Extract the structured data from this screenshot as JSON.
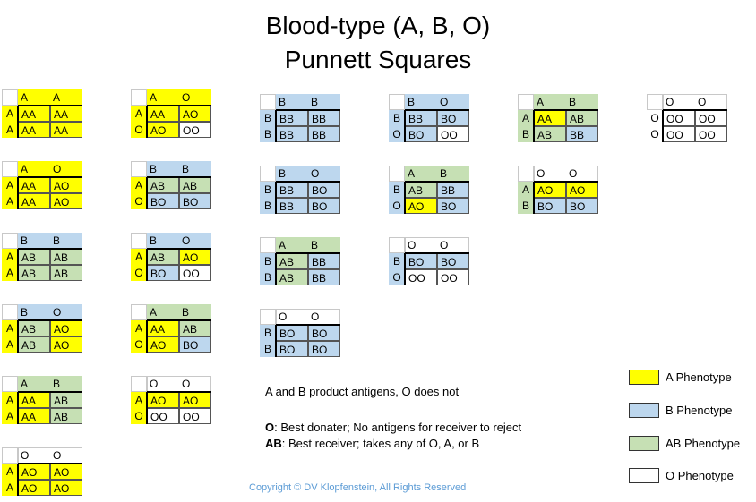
{
  "title_line1": "Blood-type (A, B, O)",
  "title_line2": "Punnett Squares",
  "colors": {
    "A": "#ffff00",
    "B": "#bdd7ee",
    "AB": "#c6e0b4",
    "O": "#ffffff"
  },
  "squares": [
    {
      "top": [
        "A",
        "A"
      ],
      "left": [
        "A",
        "A"
      ],
      "cells": [
        "AA",
        "AA",
        "AA",
        "AA"
      ],
      "ph": [
        "A",
        "A",
        "A",
        "A"
      ]
    },
    {
      "top": [
        "A",
        "O"
      ],
      "left": [
        "A",
        "A"
      ],
      "cells": [
        "AA",
        "AO",
        "AA",
        "AO"
      ],
      "ph": [
        "A",
        "A",
        "A",
        "A"
      ]
    },
    {
      "top": [
        "B",
        "B"
      ],
      "left": [
        "A",
        "A"
      ],
      "cells": [
        "AB",
        "AB",
        "AB",
        "AB"
      ],
      "ph": [
        "AB",
        "AB",
        "AB",
        "AB"
      ]
    },
    {
      "top": [
        "B",
        "O"
      ],
      "left": [
        "A",
        "A"
      ],
      "cells": [
        "AB",
        "AO",
        "AB",
        "AO"
      ],
      "ph": [
        "AB",
        "A",
        "AB",
        "A"
      ]
    },
    {
      "top": [
        "A",
        "B"
      ],
      "left": [
        "A",
        "A"
      ],
      "cells": [
        "AA",
        "AB",
        "AA",
        "AB"
      ],
      "ph": [
        "A",
        "AB",
        "A",
        "AB"
      ]
    },
    {
      "top": [
        "O",
        "O"
      ],
      "left": [
        "A",
        "A"
      ],
      "cells": [
        "AO",
        "AO",
        "AO",
        "AO"
      ],
      "ph": [
        "A",
        "A",
        "A",
        "A"
      ]
    },
    {
      "top": [
        "A",
        "O"
      ],
      "left": [
        "A",
        "O"
      ],
      "cells": [
        "AA",
        "AO",
        "AO",
        "OO"
      ],
      "ph": [
        "A",
        "A",
        "A",
        "O"
      ]
    },
    {
      "top": [
        "B",
        "B"
      ],
      "left": [
        "A",
        "O"
      ],
      "cells": [
        "AB",
        "AB",
        "BO",
        "BO"
      ],
      "ph": [
        "AB",
        "AB",
        "B",
        "B"
      ]
    },
    {
      "top": [
        "B",
        "O"
      ],
      "left": [
        "A",
        "O"
      ],
      "cells": [
        "AB",
        "AO",
        "BO",
        "OO"
      ],
      "ph": [
        "AB",
        "A",
        "B",
        "O"
      ]
    },
    {
      "top": [
        "A",
        "B"
      ],
      "left": [
        "A",
        "O"
      ],
      "cells": [
        "AA",
        "AB",
        "AO",
        "BO"
      ],
      "ph": [
        "A",
        "AB",
        "A",
        "B"
      ]
    },
    {
      "top": [
        "O",
        "O"
      ],
      "left": [
        "A",
        "O"
      ],
      "cells": [
        "AO",
        "AO",
        "OO",
        "OO"
      ],
      "ph": [
        "A",
        "A",
        "O",
        "O"
      ]
    },
    {
      "top": [
        "B",
        "B"
      ],
      "left": [
        "B",
        "B"
      ],
      "cells": [
        "BB",
        "BB",
        "BB",
        "BB"
      ],
      "ph": [
        "B",
        "B",
        "B",
        "B"
      ]
    },
    {
      "top": [
        "B",
        "O"
      ],
      "left": [
        "B",
        "B"
      ],
      "cells": [
        "BB",
        "BO",
        "BB",
        "BO"
      ],
      "ph": [
        "B",
        "B",
        "B",
        "B"
      ]
    },
    {
      "top": [
        "A",
        "B"
      ],
      "left": [
        "B",
        "B"
      ],
      "cells": [
        "AB",
        "BB",
        "AB",
        "BB"
      ],
      "ph": [
        "AB",
        "B",
        "AB",
        "B"
      ]
    },
    {
      "top": [
        "O",
        "O"
      ],
      "left": [
        "B",
        "B"
      ],
      "cells": [
        "BO",
        "BO",
        "BO",
        "BO"
      ],
      "ph": [
        "B",
        "B",
        "B",
        "B"
      ]
    },
    {
      "top": [
        "B",
        "O"
      ],
      "left": [
        "B",
        "O"
      ],
      "cells": [
        "BB",
        "BO",
        "BO",
        "OO"
      ],
      "ph": [
        "B",
        "B",
        "B",
        "O"
      ]
    },
    {
      "top": [
        "A",
        "B"
      ],
      "left": [
        "B",
        "O"
      ],
      "cells": [
        "AB",
        "BB",
        "AO",
        "BO"
      ],
      "ph": [
        "AB",
        "B",
        "A",
        "B"
      ]
    },
    {
      "top": [
        "O",
        "O"
      ],
      "left": [
        "B",
        "O"
      ],
      "cells": [
        "BO",
        "BO",
        "OO",
        "OO"
      ],
      "ph": [
        "B",
        "B",
        "O",
        "O"
      ]
    },
    {
      "top": [
        "A",
        "B"
      ],
      "left": [
        "A",
        "B"
      ],
      "cells": [
        "AA",
        "AB",
        "AB",
        "BB"
      ],
      "ph": [
        "A",
        "AB",
        "AB",
        "B"
      ]
    },
    {
      "top": [
        "O",
        "O"
      ],
      "left": [
        "A",
        "B"
      ],
      "cells": [
        "AO",
        "AO",
        "BO",
        "BO"
      ],
      "ph": [
        "A",
        "A",
        "B",
        "B"
      ]
    },
    {
      "top": [
        "O",
        "O"
      ],
      "left": [
        "O",
        "O"
      ],
      "cells": [
        "OO",
        "OO",
        "OO",
        "OO"
      ],
      "ph": [
        "O",
        "O",
        "O",
        "O"
      ]
    }
  ],
  "note_line1": "A and B product antigens, O does not",
  "note_line2_bold": "O",
  "note_line2_rest": ": Best donater; No antigens for receiver to reject",
  "note_line3_bold": "AB",
  "note_line3_rest": ": Best receiver; takes any of O, A, or B",
  "legend": [
    {
      "color": "A",
      "label": "A Phenotype"
    },
    {
      "color": "B",
      "label": "B Phenotype"
    },
    {
      "color": "AB",
      "label": "AB Phenotype"
    },
    {
      "color": "O",
      "label": "O Phenotype"
    }
  ],
  "copyright": "Copyright © DV Klopfenstein, All Rights Reserved"
}
